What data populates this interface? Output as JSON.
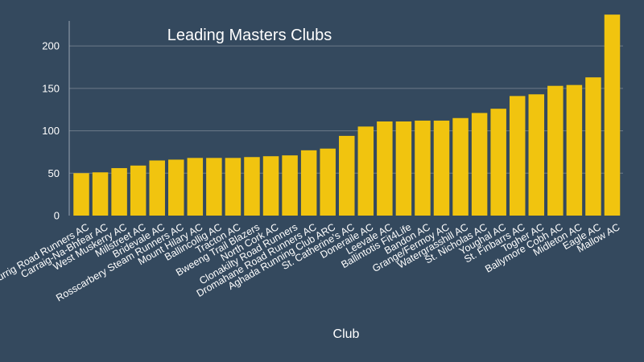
{
  "chart_data": {
    "type": "bar",
    "title": "Leading Masters Clubs",
    "xlabel": "Club",
    "ylabel": "",
    "ylim": [
      0,
      240
    ],
    "yticks": [
      0,
      50,
      100,
      150,
      200
    ],
    "grid": true,
    "bar_color": "#f1c40f",
    "background_color": "#34495e",
    "grid_color": "#6c7a89",
    "categories": [
      "Ballincurrig Road Runners AC",
      "Carraig-Na-Bhfear AC",
      "West Muskerry AC",
      "Millstreet AC",
      "Bridevale AC",
      "Rosscarbery Steam Runners AC",
      "Mount Hilary AC",
      "Ballincollig AC",
      "Tracton AC",
      "Bweeng Trail Blazers",
      "North Cork AC",
      "Clonakilty Road Runners",
      "Dromahane Road Runners AC",
      "Aghada Running Club ARC",
      "St. Catherine's AC",
      "Doneraile AC",
      "Leevale AC",
      "Ballintotis Fit4Life",
      "Bandon AC",
      "Grange/Fermoy AC",
      "Watergrasshill AC",
      "St. Nicholas AC",
      "Youghal AC",
      "St. Finbarrs AC",
      "Togher AC",
      "Ballymore Cobh AC",
      "Midleton AC",
      "Eagle AC",
      "Mallow AC"
    ],
    "values": [
      50,
      51,
      56,
      59,
      65,
      66,
      68,
      68,
      68,
      69,
      70,
      71,
      77,
      79,
      94,
      105,
      111,
      111,
      112,
      112,
      115,
      121,
      126,
      141,
      143,
      153,
      154,
      163,
      237
    ]
  }
}
